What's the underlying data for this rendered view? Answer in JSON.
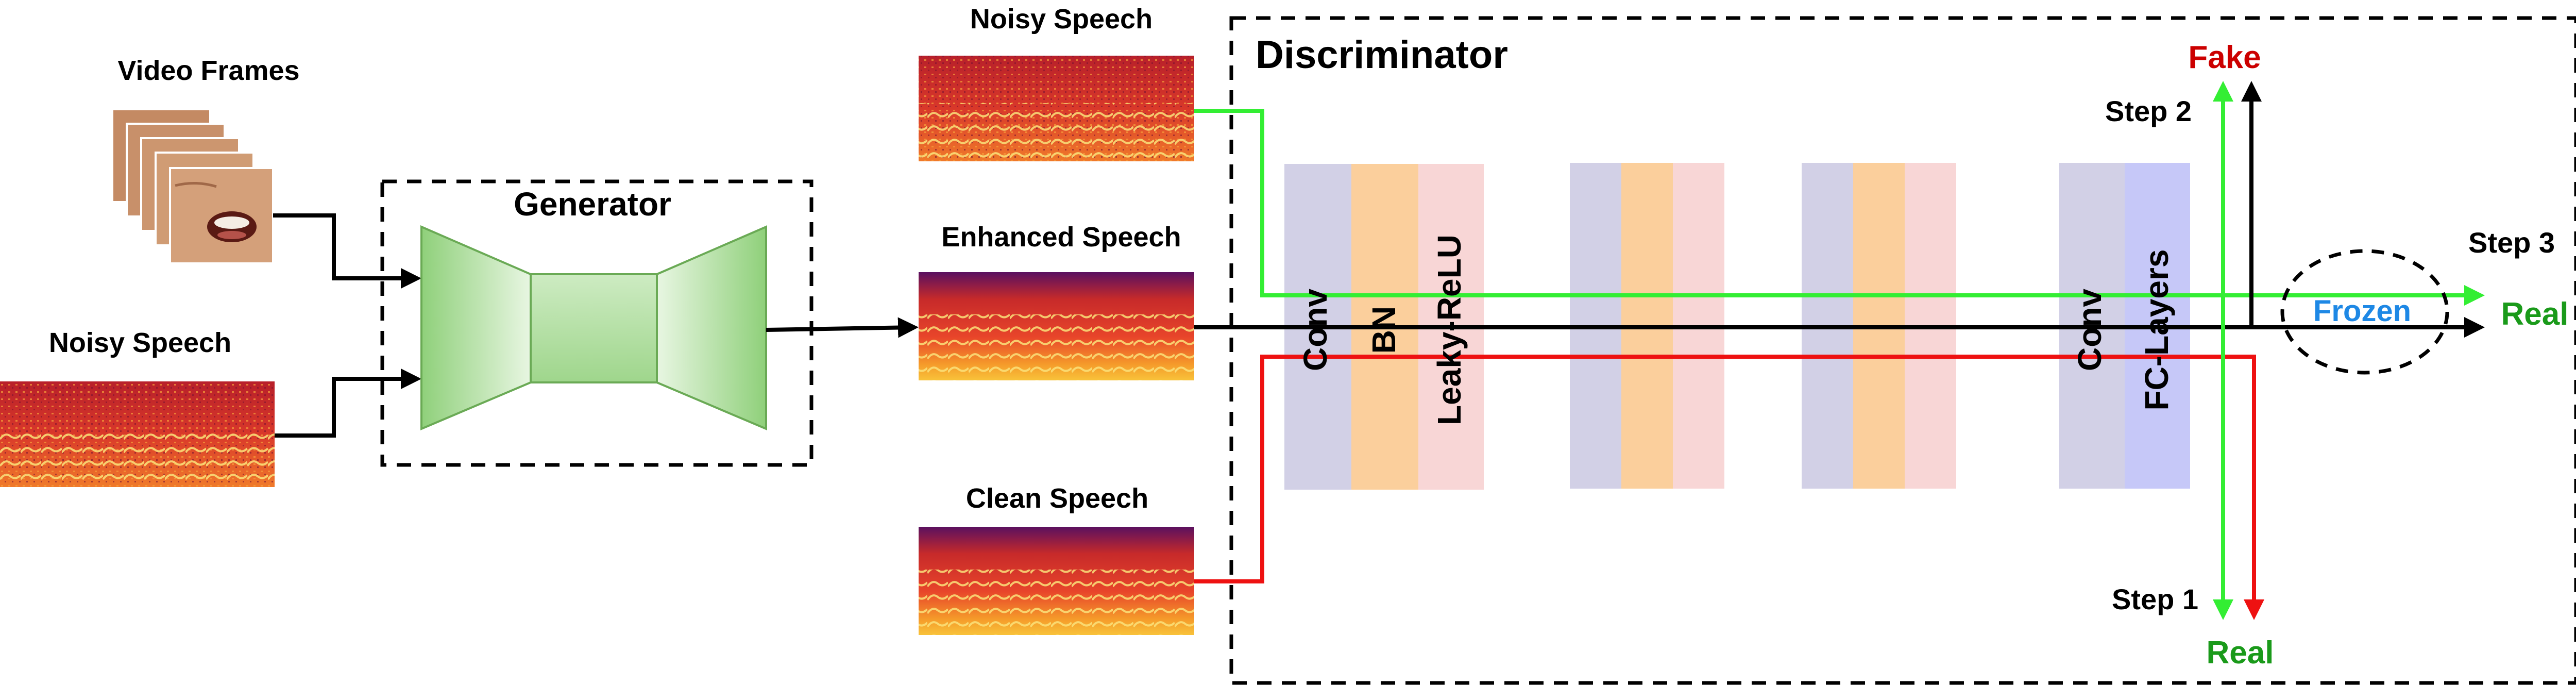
{
  "labels": {
    "video_frames": "Video Frames",
    "noisy_speech_input": "Noisy Speech",
    "generator": "Generator",
    "noisy_speech_disc": "Noisy Speech",
    "enhanced_speech": "Enhanced Speech",
    "clean_speech": "Clean Speech",
    "discriminator": "Discriminator",
    "conv_1": "Conv",
    "bn": "BN",
    "leaky_relu": "Leaky-ReLU",
    "conv_last": "Conv",
    "fc_layers": "FC-Layers",
    "step1": "Step 1",
    "step2": "Step 2",
    "step3": "Step 3",
    "fake": "Fake",
    "real_top": "Real",
    "real_bottom": "Real",
    "frozen": "Frozen"
  },
  "colors": {
    "green_path": "#33ee33",
    "red_path": "#ee1111",
    "black_path": "#000000",
    "fake_text": "#cc0000",
    "real_text": "#1a9a1a",
    "frozen_text": "#1e88e5",
    "conv_block": "#d2d0e6",
    "bn_block": "#fbcf9c",
    "relu_block": "#f8d6d6",
    "fc_block": "#c6c8f8",
    "generator_fill": "#8fd07a"
  },
  "icons": {
    "video_frames": "face-frames-icon",
    "spectrogram": "spectrogram-icon"
  }
}
